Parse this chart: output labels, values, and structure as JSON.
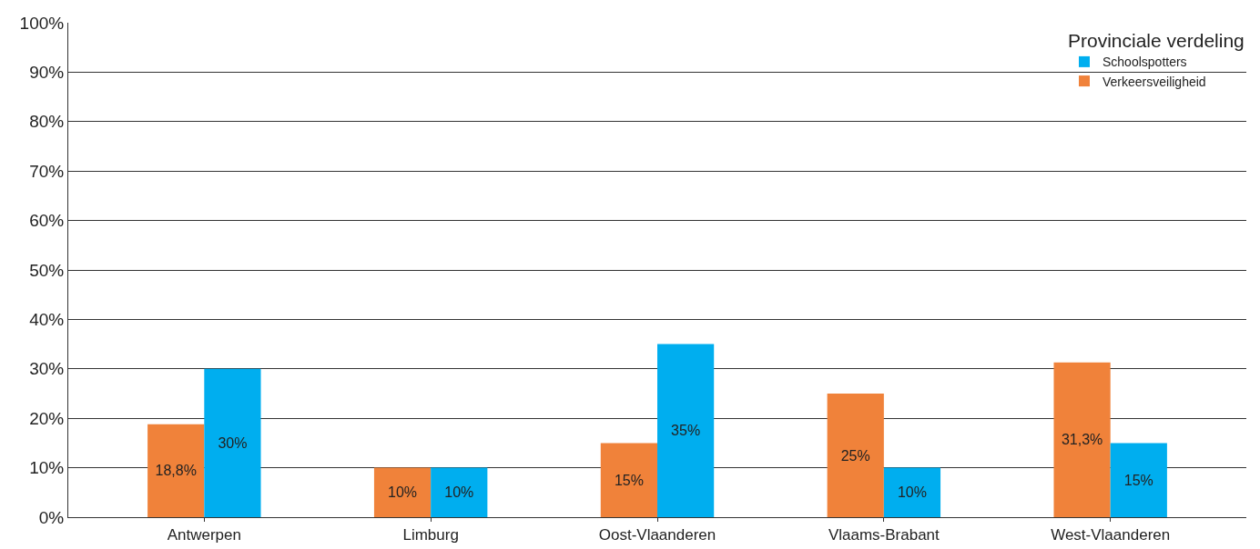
{
  "chart_data": {
    "type": "bar",
    "legend_title": "Provinciale verdeling",
    "categories": [
      "Antwerpen",
      "Limburg",
      "Oost-Vlaanderen",
      "Vlaams-Brabant",
      "West-Vlaanderen"
    ],
    "series": [
      {
        "name": "Verkeersveiligheid",
        "color": "#f0823a",
        "values": [
          18.8,
          10,
          15,
          25,
          31.3
        ],
        "value_labels": [
          "18,8%",
          "10%",
          "15%",
          "25%",
          "31,3%"
        ]
      },
      {
        "name": "Schoolspotters",
        "color": "#00aeef",
        "values": [
          30,
          10,
          35,
          10,
          15
        ],
        "value_labels": [
          "30%",
          "10%",
          "35%",
          "10%",
          "15%"
        ]
      }
    ],
    "ylim": [
      0,
      100
    ],
    "yticks": [
      {
        "value": 0,
        "label": "0%"
      },
      {
        "value": 10,
        "label": "10%"
      },
      {
        "value": 20,
        "label": "20%"
      },
      {
        "value": 30,
        "label": "30%"
      },
      {
        "value": 40,
        "label": "40%"
      },
      {
        "value": 50,
        "label": "50%"
      },
      {
        "value": 60,
        "label": "60%"
      },
      {
        "value": 70,
        "label": "70%"
      },
      {
        "value": 80,
        "label": "80%"
      },
      {
        "value": 90,
        "label": "90%"
      },
      {
        "value": 100,
        "label": "100%"
      }
    ],
    "grid": "y",
    "legend": "top right"
  }
}
